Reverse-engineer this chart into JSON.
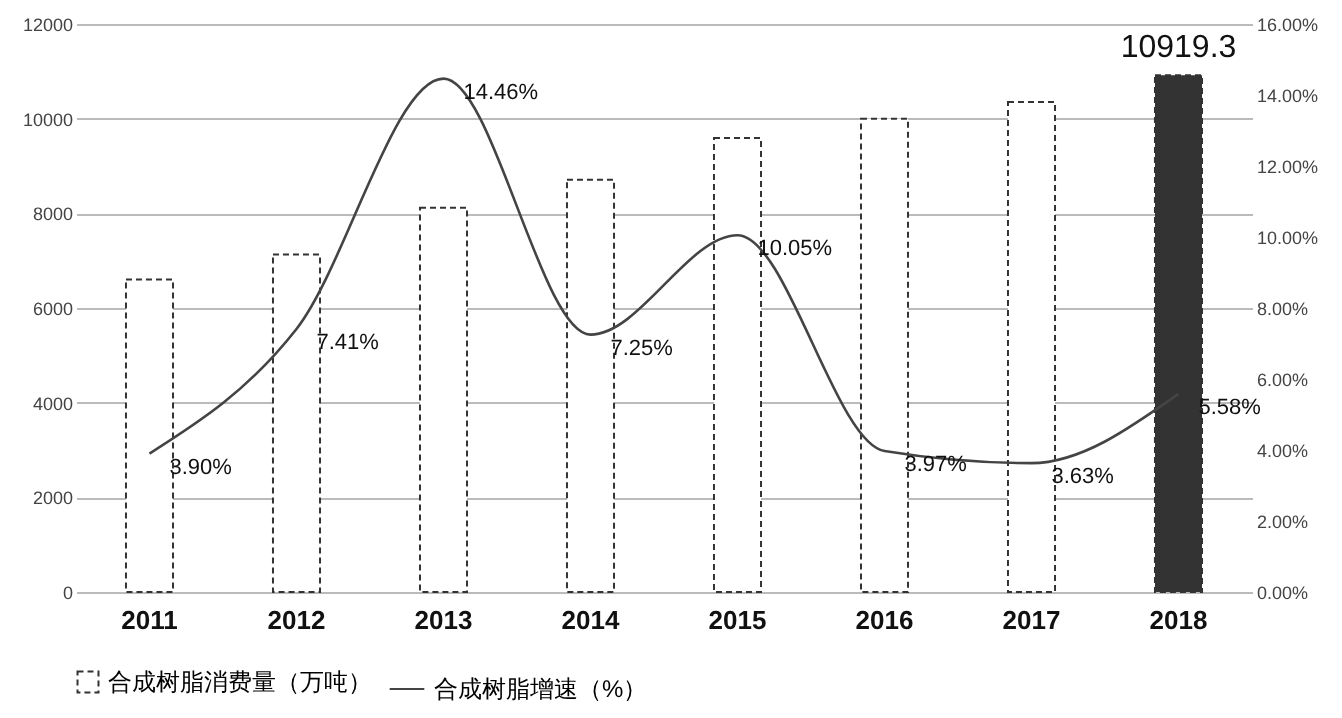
{
  "chart_data": {
    "type": "bar",
    "categories": [
      "2011",
      "2012",
      "2013",
      "2014",
      "2015",
      "2016",
      "2017",
      "2018"
    ],
    "series": [
      {
        "name": "合成树脂消费量（万吨）",
        "type": "bar",
        "color": "#333333",
        "line_style": "dashed",
        "colors": [
          "#ffffff",
          "#ffffff",
          "#ffffff",
          "#ffffff",
          "#ffffff",
          "#ffffff",
          "#ffffff",
          "#333333"
        ],
        "values": [
          6600,
          7130,
          8120,
          8710,
          9590,
          10000,
          10350,
          10919.3
        ],
        "value_labels": [
          null,
          null,
          null,
          null,
          null,
          null,
          null,
          "10919.3"
        ]
      },
      {
        "name": "合成树脂增速（%）",
        "type": "line",
        "axis": "y2",
        "color": "#444444",
        "values": [
          3.9,
          7.41,
          14.46,
          7.25,
          10.05,
          3.97,
          3.63,
          5.58
        ],
        "value_labels": [
          "3.90%",
          "7.41%",
          "14.46%",
          "7.25%",
          "10.05%",
          "3.97%",
          "3.63%",
          "5.58%"
        ]
      }
    ],
    "ylim": [
      0,
      12000
    ],
    "yticks": [
      0,
      2000,
      4000,
      6000,
      8000,
      10000,
      12000
    ],
    "y2lim": [
      0,
      16
    ],
    "y2ticks": [
      {
        "value": 0,
        "label": "0.00%"
      },
      {
        "value": 2,
        "label": "2.00%"
      },
      {
        "value": 4,
        "label": "4.00%"
      },
      {
        "value": 6,
        "label": "6.00%"
      },
      {
        "value": 8,
        "label": "8.00%"
      },
      {
        "value": 10,
        "label": "10.00%"
      },
      {
        "value": 12,
        "label": "12.00%"
      },
      {
        "value": 14,
        "label": "14.00%"
      },
      {
        "value": 16,
        "label": "16.00%"
      }
    ],
    "grid": "y",
    "legend": "bottom"
  }
}
